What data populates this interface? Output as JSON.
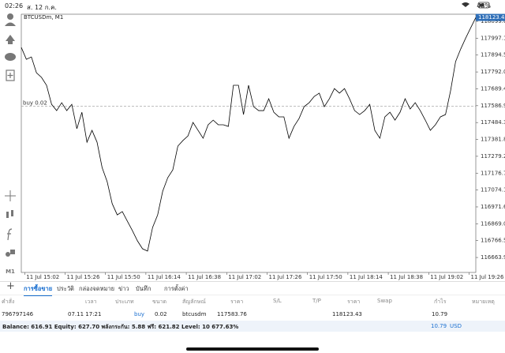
{
  "status_bar": {
    "time": "02:26",
    "date": "ส. 12 ก.ค.",
    "battery": "48%"
  },
  "toolbar": {
    "timeframe": "M1"
  },
  "chart_data": {
    "type": "line",
    "title": "BTCUSDm, M1",
    "color": "#000000",
    "grid": false,
    "values": [
      117941,
      117869,
      117883,
      117787,
      117759,
      117711,
      117595,
      117557,
      117605,
      117557,
      117595,
      117447,
      117547,
      117365,
      117437,
      117365,
      117211,
      117125,
      116991,
      116923,
      116943,
      116885,
      116827,
      116765,
      116717,
      116703,
      116847,
      116923,
      117067,
      117149,
      117197,
      117341,
      117375,
      117403,
      117485,
      117437,
      117389,
      117471,
      117499,
      117471,
      117471,
      117461,
      117711,
      117711,
      117533,
      117711,
      117581,
      117557,
      117557,
      117629,
      117547,
      117519,
      117519,
      117389,
      117461,
      117509,
      117581,
      117605,
      117643,
      117663,
      117581,
      117629,
      117691,
      117663,
      117691,
      117629,
      117557,
      117533,
      117557,
      117595,
      117437,
      117389,
      117519,
      117547,
      117499,
      117547,
      117629,
      117567,
      117605,
      117557,
      117499,
      117437,
      117471,
      117519,
      117533,
      117677,
      117855,
      117931,
      117998,
      118061,
      118123
    ],
    "xlim": [
      0,
      90
    ],
    "xticks": [
      {
        "value": 0.67,
        "label": "11 Jul 15:02"
      },
      {
        "value": 8.67,
        "label": "11 Jul 15:26"
      },
      {
        "value": 16.67,
        "label": "11 Jul 15:50"
      },
      {
        "value": 24.67,
        "label": "11 Jul 16:14"
      },
      {
        "value": 32.67,
        "label": "11 Jul 16:38"
      },
      {
        "value": 40.67,
        "label": "11 Jul 17:02"
      },
      {
        "value": 48.67,
        "label": "11 Jul 17:26"
      },
      {
        "value": 56.67,
        "label": "11 Jul 17:50"
      },
      {
        "value": 64.67,
        "label": "11 Jul 18:14"
      },
      {
        "value": 72.67,
        "label": "11 Jul 18:38"
      },
      {
        "value": 80.67,
        "label": "11 Jul 19:02"
      },
      {
        "value": 88.67,
        "label": "11 Jul 19:26"
      }
    ],
    "ylim": [
      116573,
      118143
    ],
    "yticks": [
      118099.63,
      117997.1,
      117894.58,
      {
        "value": 117792,
        "label": "117792.00"
      },
      117689.45,
      {
        "value": 117586.9,
        "label": "117586.90"
      },
      117484.35,
      {
        "value": 117381.8,
        "label": "117381.80"
      },
      117279.25,
      {
        "value": 117176.7,
        "label": "117176.70"
      },
      117074.15,
      {
        "value": 116971.6,
        "label": "116971.60"
      },
      116869.05,
      {
        "value": 116766.5,
        "label": "116766.50"
      },
      116663.95
    ],
    "last_price": 118123.43,
    "position_label": "buy 0.02"
  },
  "tabs": [
    "การซื้อขาย",
    "ประวัติ",
    "กล่องจดหมาย",
    "ข่าว",
    "บันทึก",
    "การตั้งค่า"
  ],
  "table": {
    "headers": [
      "คำสั่ง",
      "เวลา",
      "ประเภท",
      "ขนาด",
      "สัญลักษณ์",
      "ราคา",
      "S/L",
      "T/P",
      "ราคา",
      "Swap",
      "กำไร",
      "หมายเหตุ"
    ],
    "rows": [
      {
        "order": 796797146,
        "time": "07.11 17:21",
        "type": "buy",
        "volume": 0.02,
        "symbol": "btcusdm",
        "price": 117583.76,
        "current_price": 118123.43,
        "profit": 10.79
      }
    ]
  },
  "summary": {
    "text": "Balance: 616.91 Equity: 627.70 พลังกระกัน: 5.88 ฟรี: 621.82 Level: 10 677.63%",
    "profit": 10.79,
    "currency": "USD"
  }
}
